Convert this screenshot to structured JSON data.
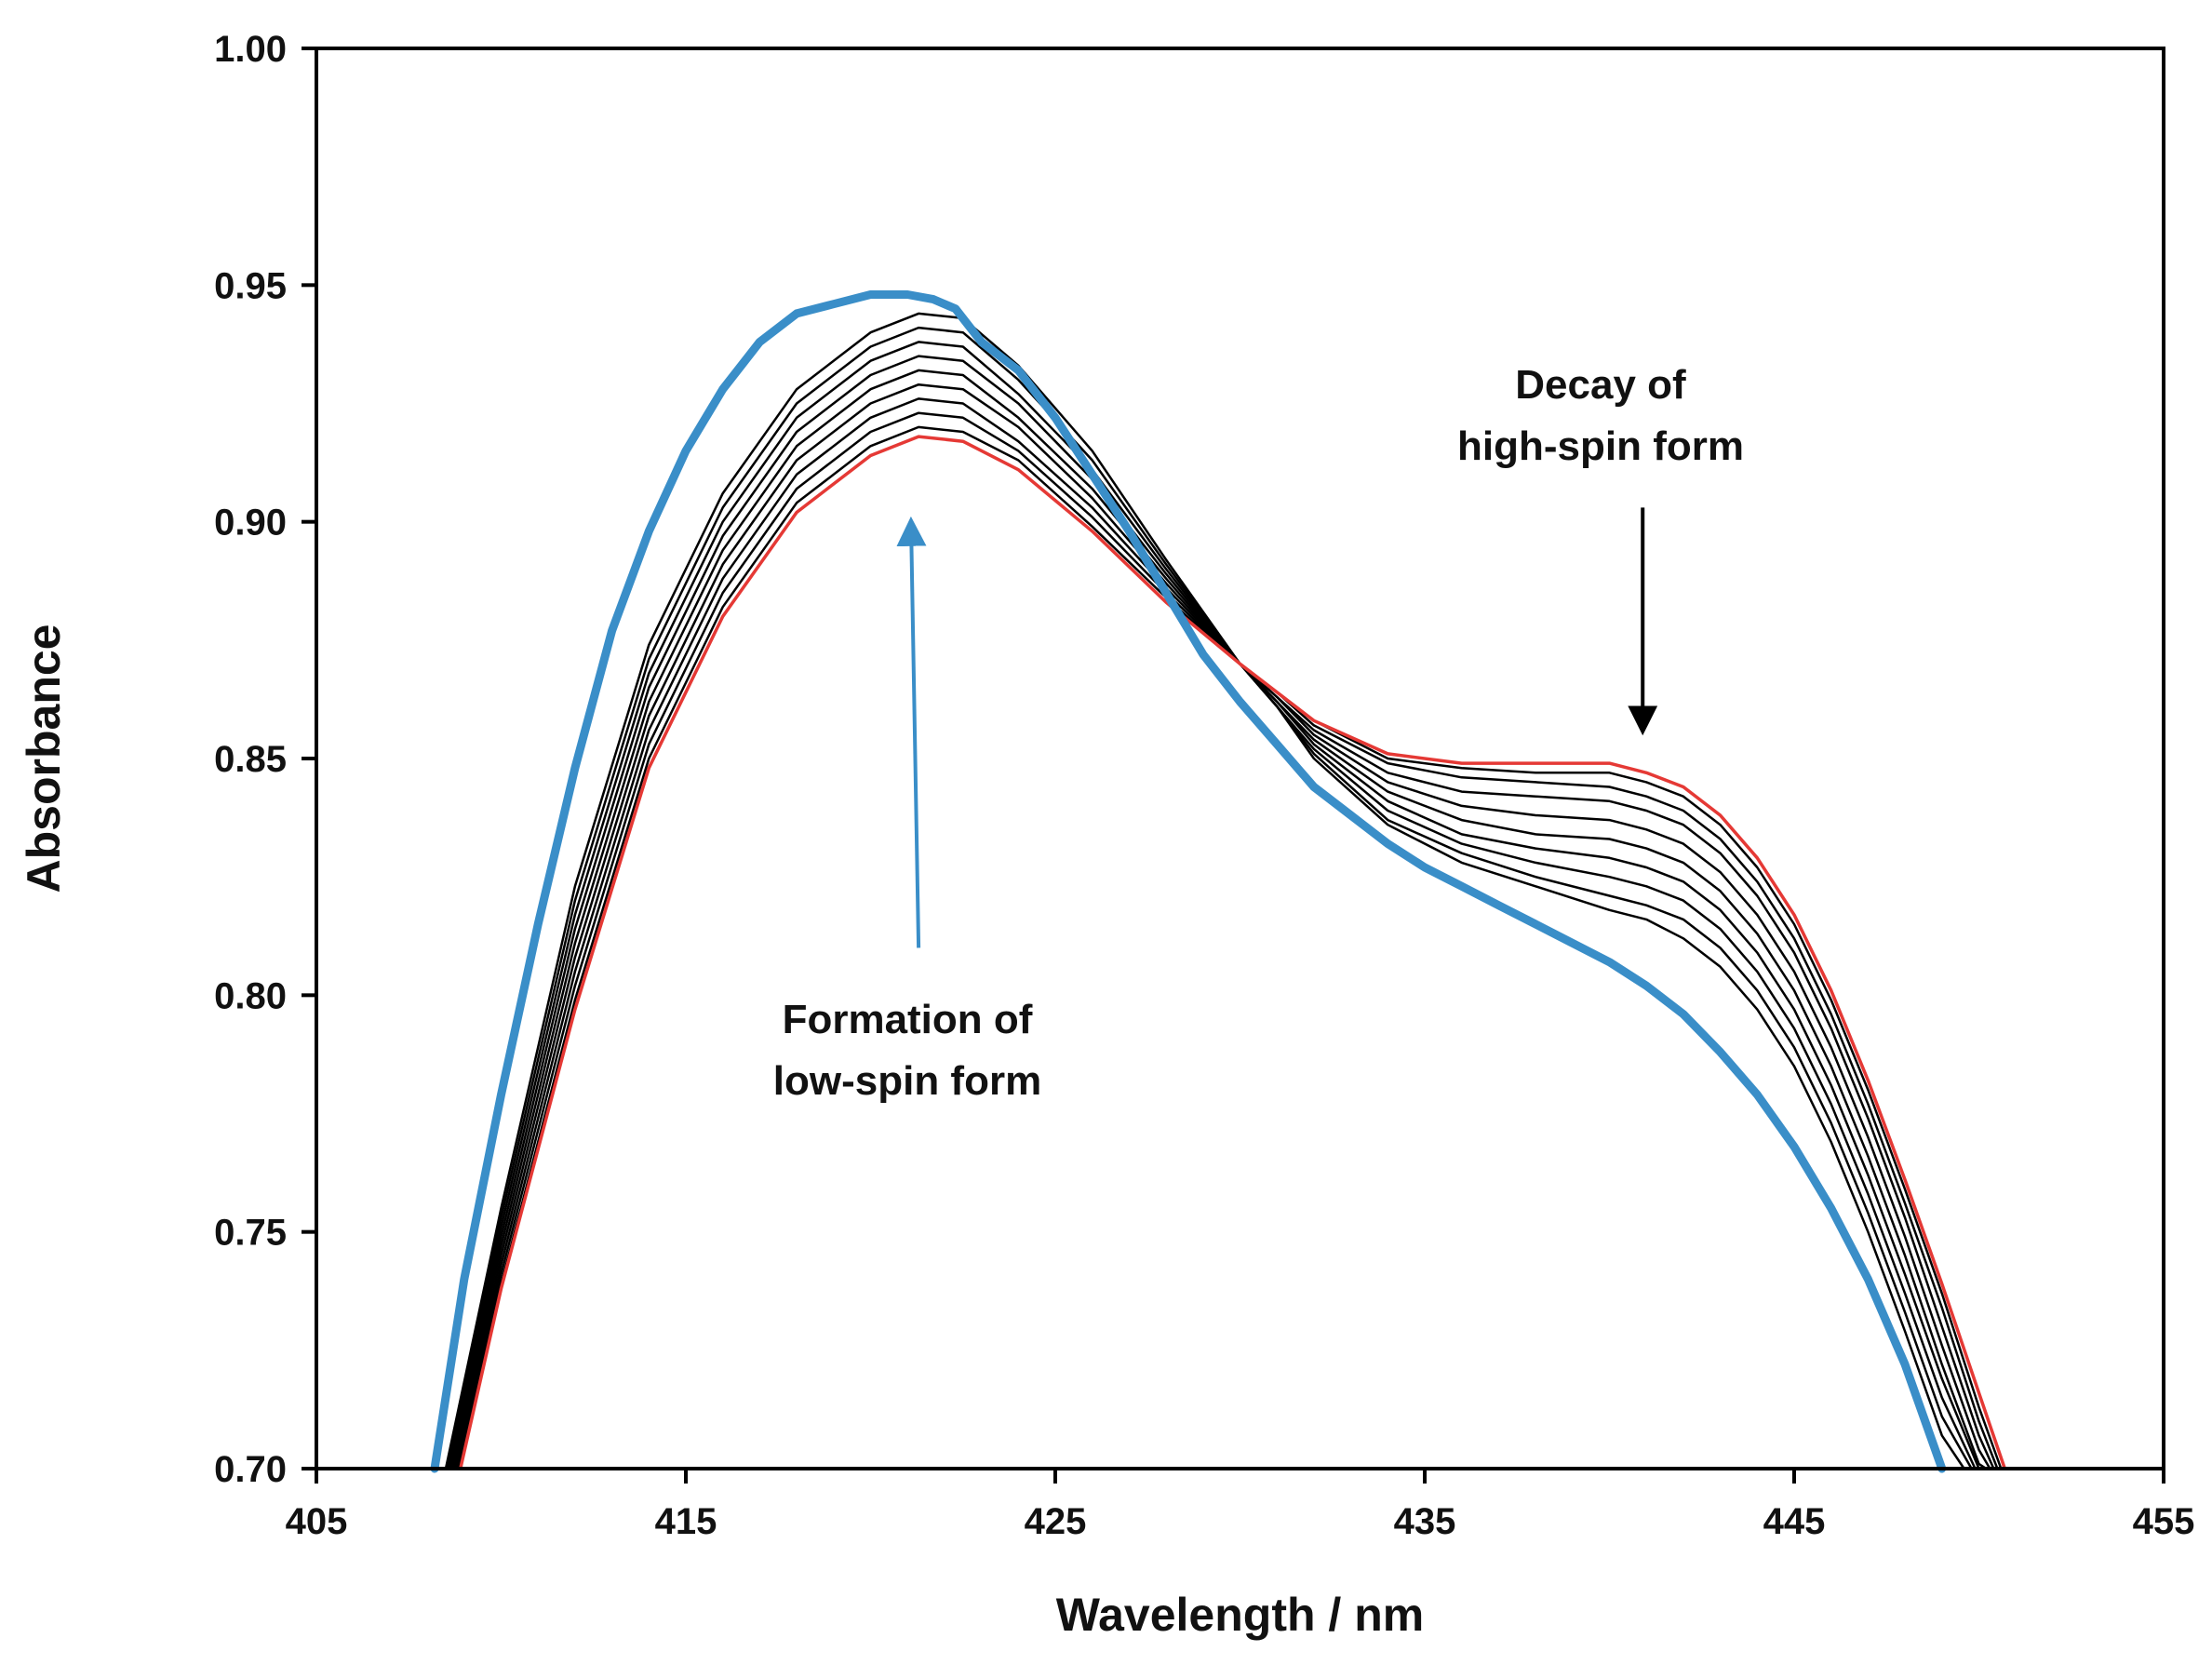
{
  "chart_data": {
    "type": "line",
    "title": "",
    "xlabel": "Wavelength / nm",
    "ylabel": "Absorbance",
    "xlim": [
      405,
      455
    ],
    "ylim": [
      0.7,
      1.0
    ],
    "xticks": [
      "405",
      "415",
      "425",
      "435",
      "445",
      "455"
    ],
    "yticks": [
      "0.70",
      "0.75",
      "0.80",
      "0.85",
      "0.90",
      "0.95",
      "1.00"
    ],
    "grid": false,
    "legend": "none",
    "colors": {
      "axis": "#000000",
      "spectra": "#000000",
      "first_spectrum": "#e53935",
      "final_spectrum": "#3a8ec8"
    },
    "annotations": [
      {
        "lines": [
          "Decay of",
          "high-spin form"
        ],
        "arrow_from": [
          440.9,
          0.903
        ],
        "arrow_to": [
          440.9,
          0.858
        ],
        "color": "#000000"
      },
      {
        "lines": [
          "Formation of",
          "low-spin form"
        ],
        "arrow_from": [
          421.3,
          0.81
        ],
        "arrow_to": [
          421.1,
          0.898
        ],
        "color": "#3a8ec8"
      }
    ],
    "series": [
      {
        "role": "initial",
        "color": "#e53935",
        "x": [
          408.9,
          410,
          412,
          414,
          416,
          418,
          420,
          421.3,
          422.5,
          424,
          426,
          428,
          430,
          431,
          432,
          434,
          436,
          438,
          440,
          441,
          442,
          443,
          444,
          445,
          446,
          447,
          448,
          449,
          450,
          450.7
        ],
        "y": [
          0.7,
          0.738,
          0.797,
          0.848,
          0.88,
          0.902,
          0.914,
          0.918,
          0.917,
          0.911,
          0.898,
          0.883,
          0.87,
          0.864,
          0.858,
          0.851,
          0.849,
          0.849,
          0.849,
          0.847,
          0.844,
          0.838,
          0.829,
          0.817,
          0.801,
          0.782,
          0.761,
          0.739,
          0.716,
          0.7
        ]
      },
      {
        "role": "intermediate",
        "color": "#000000",
        "x": [
          408.9,
          410,
          412,
          414,
          416,
          418,
          420,
          421.3,
          422.5,
          424,
          426,
          428,
          430,
          431,
          432,
          434,
          436,
          438,
          440,
          441,
          442,
          443,
          444,
          445,
          446,
          447,
          448,
          449,
          450,
          450.6
        ],
        "y": [
          0.7,
          0.739,
          0.799,
          0.85,
          0.882,
          0.904,
          0.916,
          0.92,
          0.919,
          0.913,
          0.899,
          0.884,
          0.87,
          0.864,
          0.858,
          0.85,
          0.848,
          0.847,
          0.847,
          0.845,
          0.842,
          0.836,
          0.827,
          0.815,
          0.799,
          0.78,
          0.759,
          0.737,
          0.713,
          0.7
        ]
      },
      {
        "role": "intermediate",
        "color": "#000000",
        "x": [
          408.85,
          410,
          412,
          414,
          416,
          418,
          420,
          421.3,
          422.5,
          424,
          426,
          428,
          430,
          431,
          432,
          434,
          436,
          438,
          440,
          441,
          442,
          443,
          444,
          445,
          446,
          447,
          448,
          449,
          450,
          450.5
        ],
        "y": [
          0.7,
          0.741,
          0.802,
          0.853,
          0.885,
          0.907,
          0.919,
          0.923,
          0.922,
          0.915,
          0.901,
          0.885,
          0.87,
          0.864,
          0.857,
          0.849,
          0.846,
          0.845,
          0.844,
          0.842,
          0.839,
          0.833,
          0.824,
          0.812,
          0.796,
          0.777,
          0.756,
          0.734,
          0.71,
          0.7
        ]
      },
      {
        "role": "intermediate",
        "color": "#000000",
        "x": [
          408.8,
          410,
          412,
          414,
          416,
          418,
          420,
          421.3,
          422.5,
          424,
          426,
          428,
          430,
          431,
          432,
          434,
          436,
          438,
          440,
          441,
          442,
          443,
          444,
          445,
          446,
          447,
          448,
          449,
          450,
          450.4
        ],
        "y": [
          0.7,
          0.743,
          0.805,
          0.856,
          0.888,
          0.91,
          0.922,
          0.926,
          0.925,
          0.917,
          0.903,
          0.886,
          0.87,
          0.863,
          0.856,
          0.847,
          0.843,
          0.842,
          0.841,
          0.839,
          0.836,
          0.83,
          0.821,
          0.809,
          0.793,
          0.774,
          0.753,
          0.73,
          0.707,
          0.7
        ]
      },
      {
        "role": "intermediate",
        "color": "#000000",
        "x": [
          408.75,
          410,
          412,
          414,
          416,
          418,
          420,
          421.3,
          422.5,
          424,
          426,
          428,
          430,
          431,
          432,
          434,
          436,
          438,
          440,
          441,
          442,
          443,
          444,
          445,
          446,
          447,
          448,
          449,
          450,
          450.3
        ],
        "y": [
          0.7,
          0.745,
          0.808,
          0.859,
          0.891,
          0.913,
          0.925,
          0.929,
          0.928,
          0.92,
          0.905,
          0.887,
          0.87,
          0.863,
          0.855,
          0.845,
          0.84,
          0.838,
          0.837,
          0.835,
          0.832,
          0.826,
          0.817,
          0.805,
          0.789,
          0.77,
          0.749,
          0.726,
          0.704,
          0.7
        ]
      },
      {
        "role": "intermediate",
        "color": "#000000",
        "x": [
          408.7,
          410,
          412,
          414,
          416,
          418,
          420,
          421.3,
          422.5,
          424,
          426,
          428,
          430,
          431,
          432,
          434,
          436,
          438,
          440,
          441,
          442,
          443,
          444,
          445,
          446,
          447,
          448,
          449,
          450,
          450.2
        ],
        "y": [
          0.7,
          0.747,
          0.811,
          0.862,
          0.894,
          0.916,
          0.928,
          0.932,
          0.931,
          0.922,
          0.907,
          0.888,
          0.87,
          0.862,
          0.854,
          0.843,
          0.837,
          0.834,
          0.833,
          0.831,
          0.828,
          0.822,
          0.813,
          0.801,
          0.785,
          0.766,
          0.745,
          0.722,
          0.701,
          0.7
        ]
      },
      {
        "role": "intermediate",
        "color": "#000000",
        "x": [
          408.65,
          410,
          412,
          414,
          416,
          418,
          420,
          421.3,
          422.5,
          424,
          426,
          428,
          430,
          431,
          432,
          434,
          436,
          438,
          440,
          441,
          442,
          443,
          444,
          445,
          446,
          447,
          448,
          449,
          450,
          450.1
        ],
        "y": [
          0.7,
          0.749,
          0.814,
          0.865,
          0.897,
          0.919,
          0.931,
          0.935,
          0.934,
          0.925,
          0.909,
          0.889,
          0.87,
          0.862,
          0.853,
          0.841,
          0.834,
          0.831,
          0.829,
          0.827,
          0.824,
          0.818,
          0.809,
          0.797,
          0.781,
          0.762,
          0.741,
          0.719,
          0.7,
          0.7
        ]
      },
      {
        "role": "intermediate",
        "color": "#000000",
        "x": [
          408.6,
          410,
          412,
          414,
          416,
          418,
          420,
          421.3,
          422.5,
          424,
          426,
          428,
          430,
          431,
          432,
          434,
          436,
          438,
          440,
          441,
          442,
          443,
          444,
          445,
          446,
          447,
          448,
          449,
          449.9
        ],
        "y": [
          0.7,
          0.751,
          0.817,
          0.868,
          0.9,
          0.922,
          0.934,
          0.938,
          0.937,
          0.927,
          0.911,
          0.89,
          0.87,
          0.861,
          0.852,
          0.839,
          0.832,
          0.828,
          0.825,
          0.823,
          0.82,
          0.814,
          0.805,
          0.793,
          0.777,
          0.758,
          0.737,
          0.715,
          0.7
        ]
      },
      {
        "role": "intermediate",
        "color": "#000000",
        "x": [
          408.55,
          410,
          412,
          414,
          416,
          418,
          420,
          421.3,
          422.5,
          424,
          426,
          428,
          430,
          431,
          432,
          434,
          436,
          438,
          440,
          441,
          442,
          443,
          444,
          445,
          446,
          447,
          448,
          449,
          449.8
        ],
        "y": [
          0.7,
          0.753,
          0.82,
          0.871,
          0.903,
          0.925,
          0.937,
          0.941,
          0.94,
          0.93,
          0.913,
          0.891,
          0.87,
          0.861,
          0.851,
          0.837,
          0.83,
          0.825,
          0.821,
          0.819,
          0.816,
          0.81,
          0.801,
          0.789,
          0.773,
          0.754,
          0.733,
          0.711,
          0.7
        ]
      },
      {
        "role": "intermediate",
        "color": "#000000",
        "x": [
          408.5,
          410,
          412,
          414,
          416,
          418,
          420,
          421.3,
          422.5,
          424,
          426,
          428,
          430,
          431,
          432,
          434,
          436,
          438,
          440,
          441,
          442,
          443,
          444,
          445,
          446,
          447,
          448,
          449,
          449.6
        ],
        "y": [
          0.7,
          0.755,
          0.823,
          0.874,
          0.906,
          0.928,
          0.94,
          0.944,
          0.943,
          0.933,
          0.915,
          0.892,
          0.87,
          0.861,
          0.85,
          0.836,
          0.828,
          0.823,
          0.818,
          0.816,
          0.812,
          0.806,
          0.797,
          0.785,
          0.769,
          0.75,
          0.729,
          0.707,
          0.7
        ]
      },
      {
        "role": "final",
        "color": "#3a8ec8",
        "x": [
          408.2,
          409,
          410,
          411,
          412,
          413,
          414,
          415,
          416,
          417,
          418,
          419,
          420,
          421,
          421.7,
          422.3,
          423,
          424,
          425,
          426,
          427,
          428,
          429,
          430,
          431,
          432,
          433,
          434,
          435,
          436,
          437,
          438,
          439,
          440,
          441,
          442,
          443,
          444,
          445,
          446,
          447,
          448,
          449
        ],
        "y": [
          0.7,
          0.74,
          0.779,
          0.815,
          0.848,
          0.877,
          0.898,
          0.915,
          0.928,
          0.938,
          0.944,
          0.946,
          0.948,
          0.948,
          0.947,
          0.945,
          0.938,
          0.932,
          0.922,
          0.91,
          0.898,
          0.885,
          0.872,
          0.862,
          0.853,
          0.844,
          0.838,
          0.832,
          0.827,
          0.823,
          0.819,
          0.815,
          0.811,
          0.807,
          0.802,
          0.796,
          0.788,
          0.779,
          0.768,
          0.755,
          0.74,
          0.722,
          0.7
        ]
      }
    ]
  }
}
